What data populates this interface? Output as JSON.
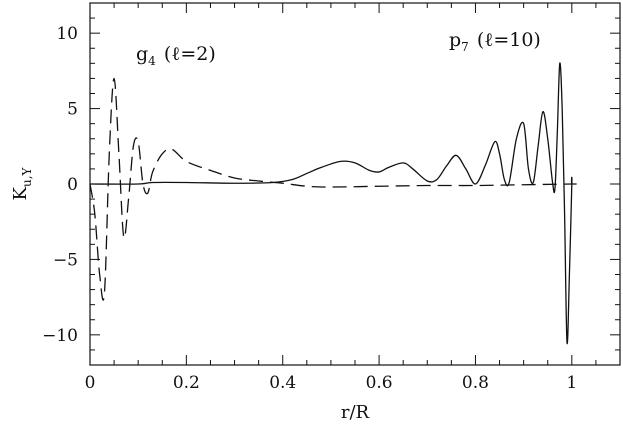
{
  "chart_data": {
    "type": "line",
    "title": "",
    "xlabel": "r/R",
    "ylabel": {
      "main": "K",
      "sub": "u,Y"
    },
    "xlim": [
      0,
      1.1
    ],
    "ylim": [
      -12,
      12
    ],
    "xticks": [
      0,
      0.2,
      0.4,
      0.6,
      0.8,
      1
    ],
    "xtick_labels": [
      "0",
      "0.2",
      "0.4",
      "0.6",
      "0.8",
      "1"
    ],
    "yticks": [
      -10,
      -5,
      0,
      5,
      10
    ],
    "ytick_labels": [
      "−10",
      "−5",
      "0",
      "5",
      "10"
    ],
    "grid": false,
    "annotations": [
      {
        "main": "g",
        "sub": "4",
        "rest": "(ℓ=2)"
      },
      {
        "main": "p",
        "sub": "7",
        "rest": "(ℓ=10)"
      }
    ],
    "series": [
      {
        "style": "solid",
        "x": [
          0,
          0.1,
          0.13,
          0.2,
          0.3,
          0.38,
          0.42,
          0.45,
          0.48,
          0.52,
          0.55,
          0.58,
          0.6,
          0.62,
          0.65,
          0.67,
          0.7,
          0.72,
          0.74,
          0.76,
          0.78,
          0.8,
          0.82,
          0.84,
          0.85,
          0.86,
          0.87,
          0.885,
          0.9,
          0.91,
          0.92,
          0.93,
          0.94,
          0.95,
          0.96,
          0.965,
          0.97,
          0.975,
          0.98,
          0.985,
          0.99,
          0.995,
          1.0,
          1.0,
          1.01
        ],
        "y": [
          0,
          0,
          0.1,
          0.1,
          0.05,
          0.1,
          0.3,
          0.7,
          1.1,
          1.5,
          1.4,
          0.9,
          0.8,
          1.1,
          1.4,
          1.0,
          0.2,
          0.3,
          1.2,
          1.9,
          1.0,
          0.0,
          1.2,
          2.8,
          2.0,
          0.3,
          0.1,
          3.0,
          4.0,
          1.0,
          0.1,
          2.5,
          4.8,
          3.0,
          0.1,
          -0.3,
          3.5,
          8.0,
          5.0,
          -2.0,
          -10.5,
          -6.0,
          0,
          0,
          0
        ]
      },
      {
        "style": "dashed",
        "x": [
          0,
          0.01,
          0.02,
          0.03,
          0.04,
          0.05,
          0.06,
          0.07,
          0.08,
          0.09,
          0.1,
          0.11,
          0.12,
          0.13,
          0.15,
          0.17,
          0.2,
          0.25,
          0.3,
          0.35,
          0.4,
          0.45,
          0.5,
          0.6,
          0.7,
          0.8,
          0.9,
          1.0
        ],
        "y": [
          0,
          -2.0,
          -6.0,
          -7.2,
          2.0,
          7.0,
          2.0,
          -3.5,
          -1.0,
          2.5,
          2.8,
          0.0,
          -0.6,
          0.8,
          2.0,
          2.3,
          1.5,
          0.9,
          0.4,
          0.2,
          0.05,
          -0.15,
          -0.2,
          -0.15,
          -0.1,
          -0.1,
          -0.05,
          0
        ]
      }
    ]
  }
}
